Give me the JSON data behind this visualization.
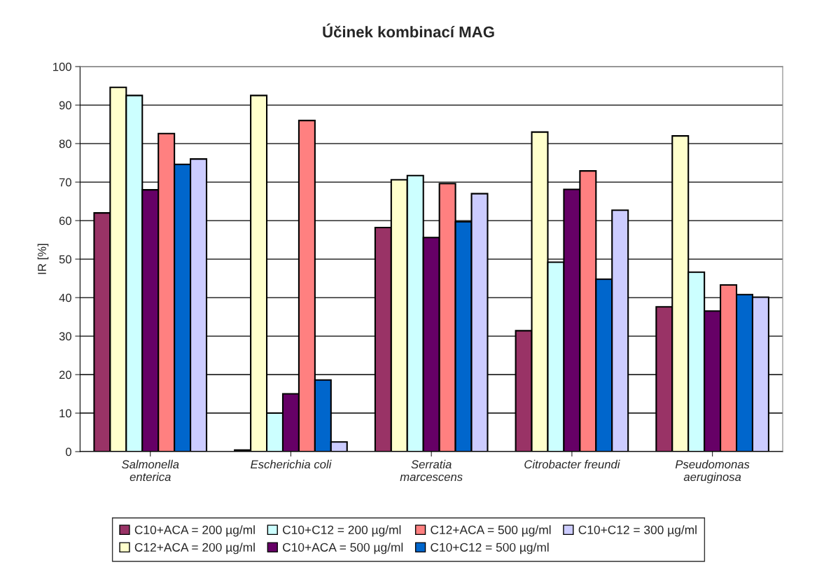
{
  "chart_data": {
    "type": "bar",
    "title": "Účinek kombinací MAG",
    "ylabel": "IR [%]",
    "categories": [
      "Salmonella\nenterica",
      "Escherichia coli",
      "Serratia\nmarcescens",
      "Citrobacter freundi",
      "Pseudomonas\naeruginosa"
    ],
    "series": [
      {
        "name": "C10+ACA = 200 µg/ml",
        "color": "#993366",
        "values": [
          62,
          0.4,
          58.2,
          31.4,
          37.6
        ]
      },
      {
        "name": "C12+ACA = 200 µg/ml",
        "color": "#ffffcc",
        "values": [
          94.6,
          92.5,
          70.6,
          83,
          82
        ]
      },
      {
        "name": "C10+C12 = 200 µg/ml",
        "color": "#ccffff",
        "values": [
          92.5,
          10,
          71.7,
          49.2,
          46.6
        ]
      },
      {
        "name": "C10+ACA = 500 µg/ml",
        "color": "#660066",
        "values": [
          68,
          15,
          55.6,
          68.1,
          36.5
        ]
      },
      {
        "name": "C12+ACA = 500 µg/ml",
        "color": "#ff8080",
        "values": [
          82.6,
          86,
          69.6,
          72.9,
          43.3
        ]
      },
      {
        "name": "C10+C12 = 500 µg/ml",
        "color": "#0066cc",
        "values": [
          74.6,
          18.6,
          59.7,
          44.8,
          40.8
        ]
      },
      {
        "name": "C10+C12 = 300 µg/ml",
        "color": "#ccccff",
        "values": [
          76,
          2.5,
          67,
          62.7,
          40.1
        ]
      }
    ],
    "ylim": [
      0,
      100
    ],
    "yticks": [
      0,
      10,
      20,
      30,
      40,
      50,
      60,
      70,
      80,
      90,
      100
    ],
    "grid": "y",
    "legend": "bottom"
  }
}
